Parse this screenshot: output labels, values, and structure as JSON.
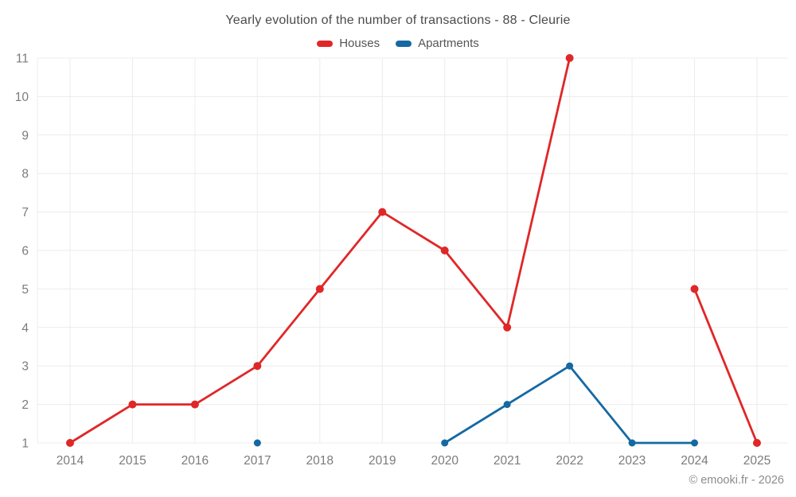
{
  "chart_data": {
    "type": "line",
    "title": "Yearly evolution of the number of transactions - 88 - Cleurie",
    "categories": [
      "2014",
      "2015",
      "2016",
      "2017",
      "2018",
      "2019",
      "2020",
      "2021",
      "2022",
      "2023",
      "2024",
      "2025"
    ],
    "series": [
      {
        "name": "Houses",
        "color": "#e02727",
        "values": [
          1,
          2,
          2,
          3,
          5,
          7,
          6,
          4,
          11,
          null,
          5,
          1
        ]
      },
      {
        "name": "Apartments",
        "color": "#1569a3",
        "values": [
          null,
          null,
          null,
          1,
          null,
          null,
          1,
          2,
          3,
          1,
          1,
          null
        ]
      }
    ],
    "yticks": [
      1,
      2,
      3,
      4,
      5,
      6,
      7,
      8,
      9,
      10,
      11
    ],
    "ylim": [
      1,
      11
    ],
    "grid": true,
    "legend_position": "top",
    "xlabel": "",
    "ylabel": ""
  },
  "colors": {
    "grid": "#ececec",
    "axis_text": "#7b7b7b",
    "title_text": "#4a4a4a",
    "legend_text": "#555555",
    "footer_text": "#8c8c8c"
  },
  "footer": {
    "text": "© emooki.fr - 2026"
  }
}
